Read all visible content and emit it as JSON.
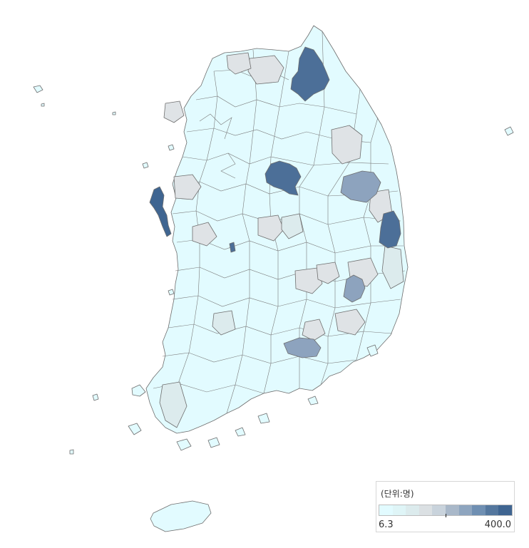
{
  "map": {
    "legend": {
      "title": "(단위:명)",
      "min_label": "6.3",
      "max_label": "400.0",
      "scale_colors": [
        "#e2fbff",
        "#dff5f7",
        "#dcebed",
        "#dbe0e3",
        "#c9d3dc",
        "#a9b8c9",
        "#8ea5bf",
        "#6f8fb2",
        "#54779e",
        "#3f6591"
      ]
    },
    "colors": {
      "base": "#e2fbff",
      "pale_gray": "#dcebed",
      "light_gray": "#dfe3e6",
      "mid_blue": "#8da3be",
      "deep_blue": "#4c6f98",
      "darkest_blue": "#3f6591",
      "outline": "#6e6e6e"
    },
    "highlighted_regions": [
      {
        "name": "Inje / Yanggu area",
        "level": "deep_blue"
      },
      {
        "name": "Chungju area",
        "level": "deep_blue"
      },
      {
        "name": "Taean peninsula",
        "level": "darkest_blue"
      },
      {
        "name": "Andong area",
        "level": "mid_blue"
      },
      {
        "name": "Yeongdeok coast",
        "level": "deep_blue"
      },
      {
        "name": "Gunwi / Daegu north",
        "level": "mid_blue"
      },
      {
        "name": "Hapcheon area",
        "level": "mid_blue"
      },
      {
        "name": "Sejong patch",
        "level": "deep_blue"
      }
    ]
  }
}
